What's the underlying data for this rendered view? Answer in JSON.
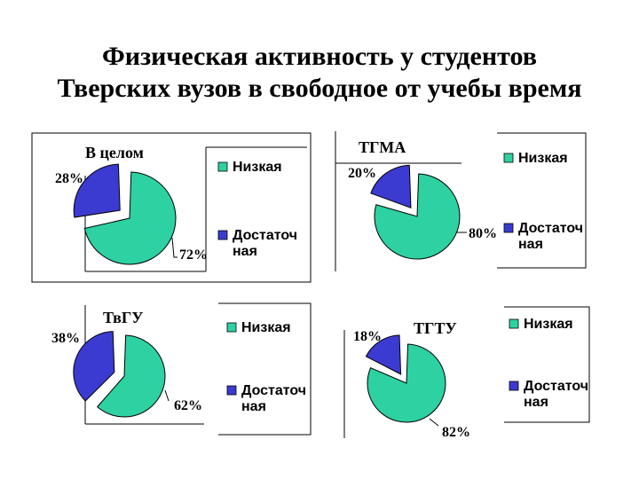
{
  "slide": {
    "title_line1": "Физическая активность у студентов",
    "title_line2": "Тверских вузов в свободное от учебы время"
  },
  "colors": {
    "low": "#2ed1a2",
    "sufficient": "#3b3bd1",
    "outline": "#000000"
  },
  "chart_data": [
    {
      "type": "pie",
      "title": "В целом",
      "categories": [
        "Низкая",
        "Достаточная"
      ],
      "values": [
        72,
        28
      ],
      "data_labels": [
        "72%",
        "28%"
      ],
      "legend": {
        "placement": "right",
        "entries": [
          [
            "Низкая"
          ],
          [
            "Достаточ",
            "ная"
          ]
        ]
      },
      "exploded": "Достаточная"
    },
    {
      "type": "pie",
      "title": "ТГМА",
      "categories": [
        "Низкая",
        "Достаточная"
      ],
      "values": [
        80,
        20
      ],
      "data_labels": [
        "80%",
        "20%"
      ],
      "legend": {
        "placement": "right",
        "entries": [
          [
            "Низкая"
          ],
          [
            "Достаточ",
            "ная"
          ]
        ]
      },
      "exploded": "Достаточная"
    },
    {
      "type": "pie",
      "title": "ТвГУ",
      "categories": [
        "Низкая",
        "Достаточная"
      ],
      "values": [
        62,
        38
      ],
      "data_labels": [
        "62%",
        "38%"
      ],
      "legend": {
        "placement": "right",
        "entries": [
          [
            "Низкая"
          ],
          [
            "Достаточ",
            "ная"
          ]
        ]
      },
      "exploded": "Достаточная"
    },
    {
      "type": "pie",
      "title": "ТГТУ",
      "categories": [
        "Низкая",
        "Достаточная"
      ],
      "values": [
        82,
        18
      ],
      "data_labels": [
        "82%",
        "18%"
      ],
      "legend": {
        "placement": "right",
        "entries": [
          [
            "Низкая"
          ],
          [
            "Достаточ",
            "ная"
          ]
        ]
      },
      "exploded": "Достаточная"
    }
  ]
}
